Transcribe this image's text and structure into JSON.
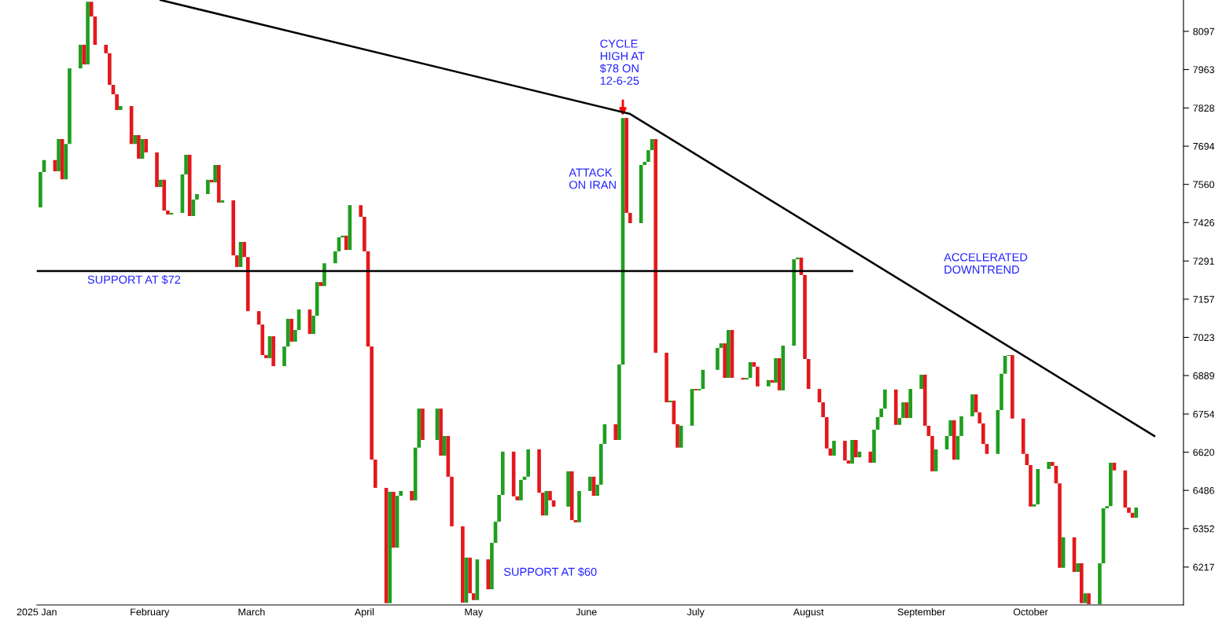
{
  "chart_data": {
    "type": "candlestick",
    "x": [
      "2025-01-02",
      "2025-01-03",
      "2025-01-06",
      "2025-01-07",
      "2025-01-08",
      "2025-01-09",
      "2025-01-10",
      "2025-01-13",
      "2025-01-14",
      "2025-01-15",
      "2025-01-16",
      "2025-01-17",
      "2025-01-20",
      "2025-01-21",
      "2025-01-22",
      "2025-01-23",
      "2025-01-24",
      "2025-01-27",
      "2025-01-28",
      "2025-01-29",
      "2025-01-30",
      "2025-01-31",
      "2025-02-03",
      "2025-02-04",
      "2025-02-05",
      "2025-02-06",
      "2025-02-07",
      "2025-02-10",
      "2025-02-11",
      "2025-02-12",
      "2025-02-13",
      "2025-02-14",
      "2025-02-17",
      "2025-02-18",
      "2025-02-19",
      "2025-02-20",
      "2025-02-21",
      "2025-02-24",
      "2025-02-25",
      "2025-02-26",
      "2025-02-27",
      "2025-02-28",
      "2025-03-03",
      "2025-03-04",
      "2025-03-05",
      "2025-03-06",
      "2025-03-07",
      "2025-03-10",
      "2025-03-11",
      "2025-03-12",
      "2025-03-13",
      "2025-03-14",
      "2025-03-17",
      "2025-03-18",
      "2025-03-19",
      "2025-03-20",
      "2025-03-21",
      "2025-03-24",
      "2025-03-25",
      "2025-03-26",
      "2025-03-27",
      "2025-03-28",
      "2025-03-31",
      "2025-04-01",
      "2025-04-02",
      "2025-04-03",
      "2025-04-04",
      "2025-04-07",
      "2025-04-08",
      "2025-04-09",
      "2025-04-10",
      "2025-04-11",
      "2025-04-14",
      "2025-04-15",
      "2025-04-16",
      "2025-04-17",
      "2025-04-21",
      "2025-04-22",
      "2025-04-23",
      "2025-04-24",
      "2025-04-25",
      "2025-04-28",
      "2025-04-29",
      "2025-04-30",
      "2025-05-01",
      "2025-05-02",
      "2025-05-05",
      "2025-05-06",
      "2025-05-07",
      "2025-05-08",
      "2025-05-09",
      "2025-05-12",
      "2025-05-13",
      "2025-05-14",
      "2025-05-15",
      "2025-05-16",
      "2025-05-19",
      "2025-05-20",
      "2025-05-21",
      "2025-05-22",
      "2025-05-23",
      "2025-05-27",
      "2025-05-28",
      "2025-05-29",
      "2025-05-30",
      "2025-06-02",
      "2025-06-03",
      "2025-06-04",
      "2025-06-05",
      "2025-06-06",
      "2025-06-09",
      "2025-06-10",
      "2025-06-11",
      "2025-06-12",
      "2025-06-13",
      "2025-06-16",
      "2025-06-17",
      "2025-06-18",
      "2025-06-19",
      "2025-06-20",
      "2025-06-23",
      "2025-06-24",
      "2025-06-25",
      "2025-06-26",
      "2025-06-27",
      "2025-06-30",
      "2025-07-01",
      "2025-07-02",
      "2025-07-03",
      "2025-07-07",
      "2025-07-08",
      "2025-07-09",
      "2025-07-10",
      "2025-07-11",
      "2025-07-14",
      "2025-07-15",
      "2025-07-16",
      "2025-07-17",
      "2025-07-18",
      "2025-07-21",
      "2025-07-22",
      "2025-07-23",
      "2025-07-24",
      "2025-07-25",
      "2025-07-28",
      "2025-07-29",
      "2025-07-30",
      "2025-07-31",
      "2025-08-01",
      "2025-08-04",
      "2025-08-05",
      "2025-08-06",
      "2025-08-07",
      "2025-08-08",
      "2025-08-11",
      "2025-08-12",
      "2025-08-13",
      "2025-08-14",
      "2025-08-15",
      "2025-08-18",
      "2025-08-19",
      "2025-08-20",
      "2025-08-21",
      "2025-08-22",
      "2025-08-25",
      "2025-08-26",
      "2025-08-27",
      "2025-08-28",
      "2025-08-29",
      "2025-09-01",
      "2025-09-02",
      "2025-09-03",
      "2025-09-04",
      "2025-09-05",
      "2025-09-08",
      "2025-09-09",
      "2025-09-10",
      "2025-09-11",
      "2025-09-12",
      "2025-09-15",
      "2025-09-16",
      "2025-09-17",
      "2025-09-18",
      "2025-09-19",
      "2025-09-22",
      "2025-09-23",
      "2025-09-24",
      "2025-09-25",
      "2025-09-26",
      "2025-09-29",
      "2025-09-30",
      "2025-10-01",
      "2025-10-02",
      "2025-10-03",
      "2025-10-06",
      "2025-10-07",
      "2025-10-08",
      "2025-10-09",
      "2025-10-10",
      "2025-10-13",
      "2025-10-14",
      "2025-10-15",
      "2025-10-16",
      "2025-10-17",
      "2025-10-20",
      "2025-10-21",
      "2025-10-22",
      "2025-10-23",
      "2025-10-24",
      "2025-10-27",
      "2025-10-28",
      "2025-10-29",
      "2025-10-30"
    ],
    "ohlc": [
      [
        7479,
        7603,
        7479,
        7603
      ],
      [
        7603,
        7645,
        7603,
        7645
      ],
      [
        7645,
        7645,
        7606,
        7606
      ],
      [
        7606,
        7719,
        7606,
        7719
      ],
      [
        7719,
        7719,
        7578,
        7578
      ],
      [
        7578,
        7702,
        7578,
        7702
      ],
      [
        7702,
        7967,
        7702,
        7967
      ],
      [
        7967,
        8050,
        7967,
        8050
      ],
      [
        8050,
        8050,
        7981,
        7981
      ],
      [
        7981,
        8201,
        7981,
        8201
      ],
      [
        8201,
        8201,
        8149,
        8149
      ],
      [
        8149,
        8149,
        8050,
        8050
      ],
      [
        8050,
        8050,
        8020,
        8020
      ],
      [
        8020,
        8020,
        7909,
        7909
      ],
      [
        7909,
        7909,
        7876,
        7876
      ],
      [
        7876,
        7876,
        7821,
        7821
      ],
      [
        7821,
        7835,
        7821,
        7835
      ],
      [
        7835,
        7835,
        7702,
        7702
      ],
      [
        7702,
        7733,
        7702,
        7733
      ],
      [
        7733,
        7733,
        7650,
        7650
      ],
      [
        7650,
        7719,
        7650,
        7719
      ],
      [
        7719,
        7719,
        7672,
        7672
      ],
      [
        7672,
        7672,
        7551,
        7551
      ],
      [
        7551,
        7576,
        7551,
        7576
      ],
      [
        7576,
        7576,
        7468,
        7468
      ],
      [
        7468,
        7468,
        7454,
        7454
      ],
      [
        7454,
        7460,
        7454,
        7460
      ],
      [
        7460,
        7595,
        7460,
        7595
      ],
      [
        7595,
        7664,
        7595,
        7664
      ],
      [
        7664,
        7664,
        7449,
        7449
      ],
      [
        7449,
        7507,
        7449,
        7507
      ],
      [
        7507,
        7526,
        7507,
        7526
      ],
      [
        7526,
        7576,
        7526,
        7576
      ],
      [
        7576,
        7576,
        7567,
        7567
      ],
      [
        7567,
        7628,
        7567,
        7628
      ],
      [
        7628,
        7628,
        7496,
        7496
      ],
      [
        7496,
        7504,
        7496,
        7504
      ],
      [
        7504,
        7504,
        7311,
        7311
      ],
      [
        7311,
        7311,
        7270,
        7270
      ],
      [
        7270,
        7358,
        7270,
        7358
      ],
      [
        7358,
        7358,
        7305,
        7305
      ],
      [
        7305,
        7305,
        7115,
        7115
      ],
      [
        7115,
        7115,
        7068,
        7068
      ],
      [
        7068,
        7068,
        6961,
        6961
      ],
      [
        6961,
        6961,
        6950,
        6950
      ],
      [
        6950,
        7027,
        6950,
        7027
      ],
      [
        7027,
        7027,
        6922,
        6922
      ],
      [
        6922,
        6991,
        6922,
        6991
      ],
      [
        6991,
        7088,
        6991,
        7088
      ],
      [
        7088,
        7088,
        7008,
        7008
      ],
      [
        7008,
        7049,
        7008,
        7049
      ],
      [
        7049,
        7121,
        7049,
        7121
      ],
      [
        7121,
        7121,
        7035,
        7035
      ],
      [
        7035,
        7099,
        7035,
        7099
      ],
      [
        7099,
        7217,
        7099,
        7217
      ],
      [
        7217,
        7217,
        7203,
        7203
      ],
      [
        7203,
        7283,
        7203,
        7283
      ],
      [
        7283,
        7325,
        7283,
        7325
      ],
      [
        7325,
        7374,
        7325,
        7374
      ],
      [
        7374,
        7380,
        7374,
        7380
      ],
      [
        7380,
        7380,
        7330,
        7330
      ],
      [
        7330,
        7487,
        7330,
        7487
      ],
      [
        7487,
        7487,
        7446,
        7446
      ],
      [
        7446,
        7446,
        7325,
        7325
      ],
      [
        7325,
        7325,
        6991,
        6991
      ],
      [
        6991,
        6991,
        6594,
        6594
      ],
      [
        6594,
        6594,
        6495,
        6495
      ],
      [
        6495,
        6495,
        6090,
        6090
      ],
      [
        6090,
        6481,
        6090,
        6481
      ],
      [
        6481,
        6481,
        6285,
        6285
      ],
      [
        6285,
        6467,
        6285,
        6467
      ],
      [
        6467,
        6484,
        6467,
        6484
      ],
      [
        6484,
        6484,
        6451,
        6451
      ],
      [
        6451,
        6636,
        6451,
        6636
      ],
      [
        6636,
        6773,
        6636,
        6773
      ],
      [
        6773,
        6773,
        6663,
        6663
      ],
      [
        6663,
        6773,
        6663,
        6773
      ],
      [
        6773,
        6773,
        6608,
        6608
      ],
      [
        6608,
        6677,
        6608,
        6677
      ],
      [
        6677,
        6677,
        6534,
        6534
      ],
      [
        6534,
        6534,
        6360,
        6360
      ],
      [
        6360,
        6360,
        6092,
        6092
      ],
      [
        6092,
        6250,
        6092,
        6250
      ],
      [
        6250,
        6250,
        6125,
        6125
      ],
      [
        6125,
        6125,
        6101,
        6101
      ],
      [
        6101,
        6244,
        6101,
        6244
      ],
      [
        6244,
        6244,
        6139,
        6139
      ],
      [
        6139,
        6302,
        6139,
        6302
      ],
      [
        6302,
        6376,
        6302,
        6376
      ],
      [
        6376,
        6470,
        6376,
        6470
      ],
      [
        6470,
        6622,
        6470,
        6622
      ],
      [
        6622,
        6622,
        6465,
        6465
      ],
      [
        6465,
        6465,
        6451,
        6451
      ],
      [
        6451,
        6523,
        6451,
        6523
      ],
      [
        6523,
        6534,
        6523,
        6534
      ],
      [
        6534,
        6630,
        6534,
        6630
      ],
      [
        6630,
        6630,
        6478,
        6478
      ],
      [
        6478,
        6478,
        6398,
        6398
      ],
      [
        6398,
        6484,
        6398,
        6484
      ],
      [
        6484,
        6484,
        6451,
        6451
      ],
      [
        6451,
        6451,
        6429,
        6429
      ],
      [
        6429,
        6553,
        6429,
        6553
      ],
      [
        6553,
        6553,
        6382,
        6382
      ],
      [
        6382,
        6382,
        6374,
        6374
      ],
      [
        6374,
        6484,
        6374,
        6484
      ],
      [
        6484,
        6534,
        6484,
        6534
      ],
      [
        6534,
        6534,
        6467,
        6467
      ],
      [
        6467,
        6506,
        6467,
        6506
      ],
      [
        6506,
        6649,
        6506,
        6649
      ],
      [
        6649,
        6718,
        6649,
        6718
      ],
      [
        6718,
        6718,
        6663,
        6663
      ],
      [
        6663,
        6928,
        6663,
        6928
      ],
      [
        6928,
        7793,
        6928,
        7793
      ],
      [
        7793,
        7793,
        7460,
        7460
      ],
      [
        7460,
        7460,
        7424,
        7424
      ],
      [
        7424,
        7628,
        7424,
        7628
      ],
      [
        7628,
        7639,
        7628,
        7639
      ],
      [
        7639,
        7680,
        7639,
        7680
      ],
      [
        7680,
        7719,
        7680,
        7719
      ],
      [
        7719,
        7719,
        6969,
        6969
      ],
      [
        6969,
        6969,
        6795,
        6795
      ],
      [
        6795,
        6801,
        6795,
        6801
      ],
      [
        6801,
        6801,
        6718,
        6718
      ],
      [
        6718,
        6718,
        6636,
        6636
      ],
      [
        6636,
        6713,
        6636,
        6713
      ],
      [
        6713,
        6842,
        6713,
        6842
      ],
      [
        6842,
        6842,
        6837,
        6837
      ],
      [
        6837,
        6842,
        6837,
        6842
      ],
      [
        6842,
        6909,
        6842,
        6909
      ],
      [
        6909,
        6986,
        6909,
        6986
      ],
      [
        6986,
        7002,
        6986,
        7002
      ],
      [
        7002,
        7002,
        6881,
        6881
      ],
      [
        6881,
        7049,
        6881,
        7049
      ],
      [
        7049,
        7049,
        6881,
        6881
      ],
      [
        6881,
        6881,
        6875,
        6875
      ],
      [
        6875,
        6881,
        6875,
        6881
      ],
      [
        6881,
        6936,
        6881,
        6936
      ],
      [
        6936,
        6936,
        6920,
        6920
      ],
      [
        6920,
        6920,
        6851,
        6851
      ],
      [
        6851,
        6873,
        6851,
        6873
      ],
      [
        6873,
        6873,
        6864,
        6864
      ],
      [
        6864,
        6950,
        6864,
        6950
      ],
      [
        6950,
        6950,
        6837,
        6837
      ],
      [
        6837,
        6994,
        6837,
        6994
      ],
      [
        6994,
        7297,
        6994,
        7297
      ],
      [
        7297,
        7303,
        7297,
        7303
      ],
      [
        7303,
        7303,
        7242,
        7242
      ],
      [
        7242,
        7242,
        6947,
        6947
      ],
      [
        6947,
        6947,
        6842,
        6842
      ],
      [
        6842,
        6842,
        6795,
        6795
      ],
      [
        6795,
        6795,
        6743,
        6743
      ],
      [
        6743,
        6743,
        6633,
        6633
      ],
      [
        6633,
        6633,
        6608,
        6608
      ],
      [
        6608,
        6660,
        6608,
        6660
      ],
      [
        6660,
        6660,
        6591,
        6591
      ],
      [
        6591,
        6591,
        6580,
        6580
      ],
      [
        6580,
        6663,
        6580,
        6663
      ],
      [
        6663,
        6663,
        6602,
        6602
      ],
      [
        6602,
        6622,
        6602,
        6622
      ],
      [
        6622,
        6622,
        6583,
        6583
      ],
      [
        6583,
        6699,
        6583,
        6699
      ],
      [
        6699,
        6743,
        6699,
        6743
      ],
      [
        6743,
        6773,
        6743,
        6773
      ],
      [
        6773,
        6840,
        6773,
        6840
      ],
      [
        6840,
        6840,
        6716,
        6716
      ],
      [
        6716,
        6740,
        6716,
        6740
      ],
      [
        6740,
        6795,
        6740,
        6795
      ],
      [
        6795,
        6795,
        6740,
        6740
      ],
      [
        6740,
        6842,
        6740,
        6842
      ],
      [
        6842,
        6892,
        6842,
        6892
      ],
      [
        6892,
        6892,
        6713,
        6713
      ],
      [
        6713,
        6713,
        6677,
        6677
      ],
      [
        6677,
        6677,
        6553,
        6553
      ],
      [
        6553,
        6630,
        6553,
        6630
      ],
      [
        6630,
        6677,
        6630,
        6677
      ],
      [
        6677,
        6732,
        6677,
        6732
      ],
      [
        6732,
        6732,
        6594,
        6594
      ],
      [
        6594,
        6677,
        6594,
        6677
      ],
      [
        6677,
        6746,
        6677,
        6746
      ],
      [
        6746,
        6823,
        6746,
        6823
      ],
      [
        6823,
        6823,
        6760,
        6760
      ],
      [
        6760,
        6760,
        6721,
        6721
      ],
      [
        6721,
        6721,
        6649,
        6649
      ],
      [
        6649,
        6649,
        6614,
        6614
      ],
      [
        6614,
        6768,
        6614,
        6768
      ],
      [
        6768,
        6895,
        6768,
        6895
      ],
      [
        6895,
        6958,
        6895,
        6958
      ],
      [
        6958,
        6961,
        6958,
        6961
      ],
      [
        6961,
        6961,
        6738,
        6738
      ],
      [
        6738,
        6738,
        6614,
        6614
      ],
      [
        6614,
        6614,
        6575,
        6575
      ],
      [
        6575,
        6575,
        6429,
        6429
      ],
      [
        6429,
        6437,
        6429,
        6437
      ],
      [
        6437,
        6561,
        6437,
        6561
      ],
      [
        6561,
        6586,
        6561,
        6586
      ],
      [
        6586,
        6586,
        6572,
        6572
      ],
      [
        6572,
        6572,
        6511,
        6511
      ],
      [
        6511,
        6511,
        6214,
        6214
      ],
      [
        6214,
        6321,
        6214,
        6321
      ],
      [
        6321,
        6321,
        6200,
        6200
      ],
      [
        6200,
        6230,
        6200,
        6230
      ],
      [
        6230,
        6230,
        6090,
        6090
      ],
      [
        6090,
        6125,
        6090,
        6125
      ],
      [
        6125,
        6125,
        6087,
        6087
      ],
      [
        6087,
        6230,
        6087,
        6230
      ],
      [
        6230,
        6423,
        6230,
        6423
      ],
      [
        6423,
        6431,
        6423,
        6431
      ],
      [
        6431,
        6583,
        6431,
        6583
      ],
      [
        6583,
        6583,
        6556,
        6556
      ],
      [
        6556,
        6556,
        6426,
        6426
      ],
      [
        6426,
        6426,
        6407,
        6407
      ],
      [
        6407,
        6407,
        6390,
        6390
      ],
      [
        6390,
        6426,
        6390,
        6426
      ]
    ],
    "colors": [
      "#1f9e1f",
      "#1f9e1f",
      "#e3181c",
      "#1f9e1f",
      "#e3181c",
      "#1f9e1f",
      "#1f9e1f",
      "#1f9e1f",
      "#e3181c",
      "#1f9e1f",
      "#e3181c",
      "#e3181c",
      "#e3181c",
      "#e3181c",
      "#e3181c",
      "#e3181c",
      "#1f9e1f",
      "#e3181c",
      "#1f9e1f",
      "#e3181c",
      "#1f9e1f",
      "#e3181c",
      "#e3181c",
      "#1f9e1f",
      "#e3181c",
      "#e3181c",
      "#1f9e1f",
      "#1f9e1f",
      "#1f9e1f",
      "#e3181c",
      "#1f9e1f",
      "#1f9e1f",
      "#1f9e1f",
      "#e3181c",
      "#1f9e1f",
      "#e3181c",
      "#1f9e1f",
      "#e3181c",
      "#e3181c",
      "#1f9e1f",
      "#e3181c",
      "#e3181c",
      "#e3181c",
      "#e3181c",
      "#e3181c",
      "#1f9e1f",
      "#e3181c",
      "#1f9e1f",
      "#1f9e1f",
      "#e3181c",
      "#1f9e1f",
      "#1f9e1f",
      "#e3181c",
      "#1f9e1f",
      "#1f9e1f",
      "#e3181c",
      "#1f9e1f",
      "#1f9e1f",
      "#1f9e1f",
      "#1f9e1f",
      "#e3181c",
      "#1f9e1f",
      "#e3181c",
      "#e3181c",
      "#e3181c",
      "#e3181c",
      "#e3181c",
      "#e3181c",
      "#1f9e1f",
      "#e3181c",
      "#1f9e1f",
      "#1f9e1f",
      "#e3181c",
      "#1f9e1f",
      "#1f9e1f",
      "#e3181c",
      "#1f9e1f",
      "#e3181c",
      "#1f9e1f",
      "#e3181c",
      "#e3181c",
      "#e3181c",
      "#1f9e1f",
      "#e3181c",
      "#e3181c",
      "#1f9e1f",
      "#e3181c",
      "#1f9e1f",
      "#1f9e1f",
      "#1f9e1f",
      "#1f9e1f",
      "#e3181c",
      "#e3181c",
      "#1f9e1f",
      "#1f9e1f",
      "#1f9e1f",
      "#e3181c",
      "#e3181c",
      "#1f9e1f",
      "#e3181c",
      "#e3181c",
      "#1f9e1f",
      "#e3181c",
      "#e3181c",
      "#1f9e1f",
      "#1f9e1f",
      "#e3181c",
      "#1f9e1f",
      "#1f9e1f",
      "#1f9e1f",
      "#e3181c",
      "#1f9e1f",
      "#1f9e1f",
      "#e3181c",
      "#e3181c",
      "#1f9e1f",
      "#1f9e1f",
      "#1f9e1f",
      "#1f9e1f",
      "#e3181c",
      "#e3181c",
      "#1f9e1f",
      "#e3181c",
      "#e3181c",
      "#1f9e1f",
      "#1f9e1f",
      "#e3181c",
      "#1f9e1f",
      "#1f9e1f",
      "#1f9e1f",
      "#1f9e1f",
      "#e3181c",
      "#1f9e1f",
      "#e3181c",
      "#e3181c",
      "#1f9e1f",
      "#1f9e1f",
      "#e3181c",
      "#e3181c",
      "#1f9e1f",
      "#e3181c",
      "#1f9e1f",
      "#e3181c",
      "#1f9e1f",
      "#1f9e1f",
      "#1f9e1f",
      "#e3181c",
      "#e3181c",
      "#e3181c",
      "#e3181c",
      "#e3181c",
      "#e3181c",
      "#e3181c",
      "#1f9e1f",
      "#e3181c",
      "#e3181c",
      "#1f9e1f",
      "#e3181c",
      "#1f9e1f",
      "#e3181c",
      "#1f9e1f",
      "#1f9e1f",
      "#1f9e1f",
      "#1f9e1f",
      "#e3181c",
      "#1f9e1f",
      "#1f9e1f",
      "#e3181c",
      "#1f9e1f",
      "#1f9e1f",
      "#e3181c",
      "#e3181c",
      "#e3181c",
      "#1f9e1f",
      "#1f9e1f",
      "#1f9e1f",
      "#e3181c",
      "#1f9e1f",
      "#1f9e1f",
      "#1f9e1f",
      "#e3181c",
      "#e3181c",
      "#e3181c",
      "#e3181c",
      "#1f9e1f",
      "#1f9e1f",
      "#1f9e1f",
      "#1f9e1f",
      "#e3181c",
      "#e3181c",
      "#e3181c",
      "#e3181c",
      "#1f9e1f",
      "#1f9e1f",
      "#1f9e1f",
      "#e3181c",
      "#e3181c",
      "#e3181c",
      "#1f9e1f",
      "#e3181c",
      "#1f9e1f",
      "#e3181c",
      "#1f9e1f",
      "#e3181c",
      "#1f9e1f",
      "#1f9e1f",
      "#1f9e1f",
      "#1f9e1f",
      "#e3181c",
      "#e3181c",
      "#e3181c",
      "#e3181c",
      "#1f9e1f"
    ],
    "series": [
      {
        "type": "line",
        "x": [
          "2025-01-01",
          "2025-08-13"
        ],
        "values": [
          7256,
          7256
        ],
        "color": "#000000"
      },
      {
        "type": "line",
        "x": [
          "2025-02-04",
          "2025-06-13",
          "2025-11-04"
        ],
        "values": [
          8207,
          7807,
          6677
        ],
        "color": "#000000"
      }
    ],
    "annotations": [
      {
        "text": "CYCLE\nHIGH AT\n$78 ON\n12-6-25",
        "x": "2025-06-11",
        "y": 7793
      },
      "ATTACK\nON IRAN",
      "SUPPORT AT $72",
      "SUPPORT AT $60",
      "ACCELERATED\nDOWNTREND"
    ],
    "xlim": [
      "2025-01-01",
      "2025-11-12"
    ],
    "xticks": [
      {
        "value": "2025-01-01",
        "label": "2025 Jan"
      },
      {
        "value": "2025-02-01",
        "label": "February"
      },
      {
        "value": "2025-03-01",
        "label": "March"
      },
      {
        "value": "2025-04-01",
        "label": "April"
      },
      {
        "value": "2025-05-01",
        "label": "May"
      },
      {
        "value": "2025-06-01",
        "label": "June"
      },
      {
        "value": "2025-07-01",
        "label": "July"
      },
      {
        "value": "2025-08-01",
        "label": "August"
      },
      {
        "value": "2025-09-01",
        "label": "September"
      },
      {
        "value": "2025-10-01",
        "label": "October"
      }
    ],
    "ylim": [
      6084,
      8207
    ],
    "yticks": [
      6217,
      6352,
      6486,
      6620,
      6754,
      6889,
      7023,
      7157,
      7291,
      7426,
      7560,
      7694,
      7828,
      7963,
      8097
    ]
  }
}
